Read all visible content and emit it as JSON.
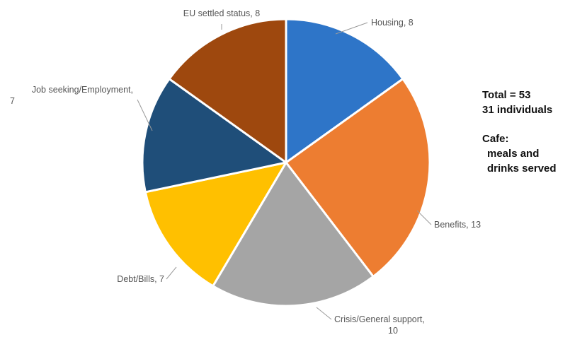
{
  "chart_data": {
    "type": "pie",
    "title": "",
    "slices": [
      {
        "label": "Housing",
        "value": 8,
        "color": "#2e75c8"
      },
      {
        "label": "Benefits",
        "value": 13,
        "color": "#ed7d31"
      },
      {
        "label": "Crisis/General support",
        "value": 10,
        "color": "#a5a5a5"
      },
      {
        "label": "Debt/Bills",
        "value": 7,
        "color": "#ffc000"
      },
      {
        "label": "Job seeking/Employment",
        "value": 7,
        "color": "#1f4e79"
      },
      {
        "label": "EU settled status",
        "value": 8,
        "color": "#9e480e"
      }
    ],
    "data_labels": [
      {
        "lines": [
          "Housing, 8"
        ]
      },
      {
        "lines": [
          "Benefits, 13"
        ]
      },
      {
        "lines": [
          "Crisis/General support,",
          "10"
        ]
      },
      {
        "lines": [
          "Debt/Bills, 7"
        ]
      },
      {
        "lines": [
          "Job seeking/Employment,",
          "7"
        ]
      },
      {
        "lines": [
          "EU settled status, 8"
        ]
      }
    ]
  },
  "side_notes": {
    "total": "Total = 53",
    "individuals": "31 individuals",
    "cafe": "Cafe:",
    "meals": "meals and",
    "drinks": "drinks served"
  }
}
